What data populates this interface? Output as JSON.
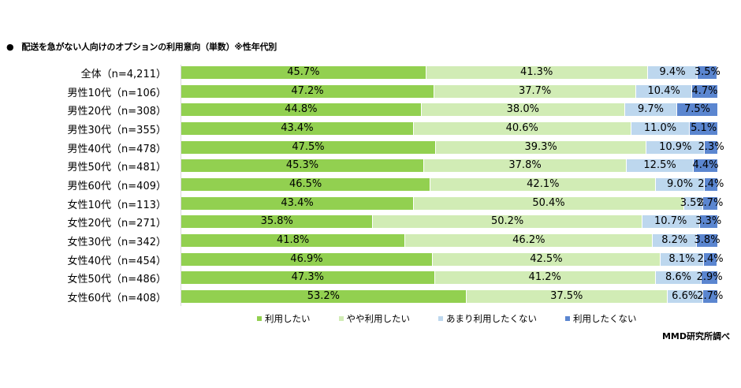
{
  "title": "配送を急がない人向けのオプションの利用意向（単数）※性年代別",
  "title_bullet": "●",
  "legend": [
    {
      "label": "利用したい",
      "color": "#92d050"
    },
    {
      "label": "やや利用したい",
      "color": "#d1ecb5"
    },
    {
      "label": "あまり利用したくない",
      "color": "#bdd7ee"
    },
    {
      "label": "利用したくない",
      "color": "#5b86d0"
    }
  ],
  "source": "MMD研究所調べ",
  "rows": [
    {
      "label": "全体（n=4,211）",
      "values": [
        "45.7%",
        "41.3%",
        "9.4%",
        "3.5%"
      ]
    },
    {
      "label": "男性10代（n=106）",
      "values": [
        "47.2%",
        "37.7%",
        "10.4%",
        "4.7%"
      ]
    },
    {
      "label": "男性20代（n=308）",
      "values": [
        "44.8%",
        "38.0%",
        "9.7%",
        "7.5%"
      ]
    },
    {
      "label": "男性30代（n=355）",
      "values": [
        "43.4%",
        "40.6%",
        "11.0%",
        "5.1%"
      ]
    },
    {
      "label": "男性40代（n=478）",
      "values": [
        "47.5%",
        "39.3%",
        "10.9%",
        "2.3%"
      ]
    },
    {
      "label": "男性50代（n=481）",
      "values": [
        "45.3%",
        "37.8%",
        "12.5%",
        "4.4%"
      ]
    },
    {
      "label": "男性60代（n=409）",
      "values": [
        "46.5%",
        "42.1%",
        "9.0%",
        "2.4%"
      ]
    },
    {
      "label": "女性10代（n=113）",
      "values": [
        "43.4%",
        "50.4%",
        "3.5%",
        "2.7%"
      ]
    },
    {
      "label": "女性20代（n=271）",
      "values": [
        "35.8%",
        "50.2%",
        "10.7%",
        "3.3%"
      ]
    },
    {
      "label": "女性30代（n=342）",
      "values": [
        "41.8%",
        "46.2%",
        "8.2%",
        "3.8%"
      ]
    },
    {
      "label": "女性40代（n=454）",
      "values": [
        "46.9%",
        "42.5%",
        "8.1%",
        "2.4%"
      ]
    },
    {
      "label": "女性50代（n=486）",
      "values": [
        "47.3%",
        "41.2%",
        "8.6%",
        "2.9%"
      ]
    },
    {
      "label": "女性60代（n=408）",
      "values": [
        "53.2%",
        "37.5%",
        "6.6%",
        "2.7%"
      ]
    }
  ],
  "chart_data": {
    "type": "bar",
    "orientation": "horizontal",
    "stacked": true,
    "percent_stacked": true,
    "title": "配送を急がない人向けのオプションの利用意向（単数）※性年代別",
    "xlabel": "",
    "ylabel": "",
    "xlim": [
      0,
      100
    ],
    "grid": false,
    "legend_position": "bottom",
    "categories": [
      "全体（n=4,211）",
      "男性10代（n=106）",
      "男性20代（n=308）",
      "男性30代（n=355）",
      "男性40代（n=478）",
      "男性50代（n=481）",
      "男性60代（n=409）",
      "女性10代（n=113）",
      "女性20代（n=271）",
      "女性30代（n=342）",
      "女性40代（n=454）",
      "女性50代（n=486）",
      "女性60代（n=408）"
    ],
    "series": [
      {
        "name": "利用したい",
        "color": "#92d050",
        "values": [
          45.7,
          47.2,
          44.8,
          43.4,
          47.5,
          45.3,
          46.5,
          43.4,
          35.8,
          41.8,
          46.9,
          47.3,
          53.2
        ]
      },
      {
        "name": "やや利用したい",
        "color": "#d1ecb5",
        "values": [
          41.3,
          37.7,
          38.0,
          40.6,
          39.3,
          37.8,
          42.1,
          50.4,
          50.2,
          46.2,
          42.5,
          41.2,
          37.5
        ]
      },
      {
        "name": "あまり利用したくない",
        "color": "#bdd7ee",
        "values": [
          9.4,
          10.4,
          9.7,
          11.0,
          10.9,
          12.5,
          9.0,
          3.5,
          10.7,
          8.2,
          8.1,
          8.6,
          6.6
        ]
      },
      {
        "name": "利用したくない",
        "color": "#5b86d0",
        "values": [
          3.5,
          4.7,
          7.5,
          5.1,
          2.3,
          4.4,
          2.4,
          2.7,
          3.3,
          3.8,
          2.4,
          2.9,
          2.7
        ]
      }
    ],
    "annotations": [
      "MMD研究所調べ"
    ]
  }
}
